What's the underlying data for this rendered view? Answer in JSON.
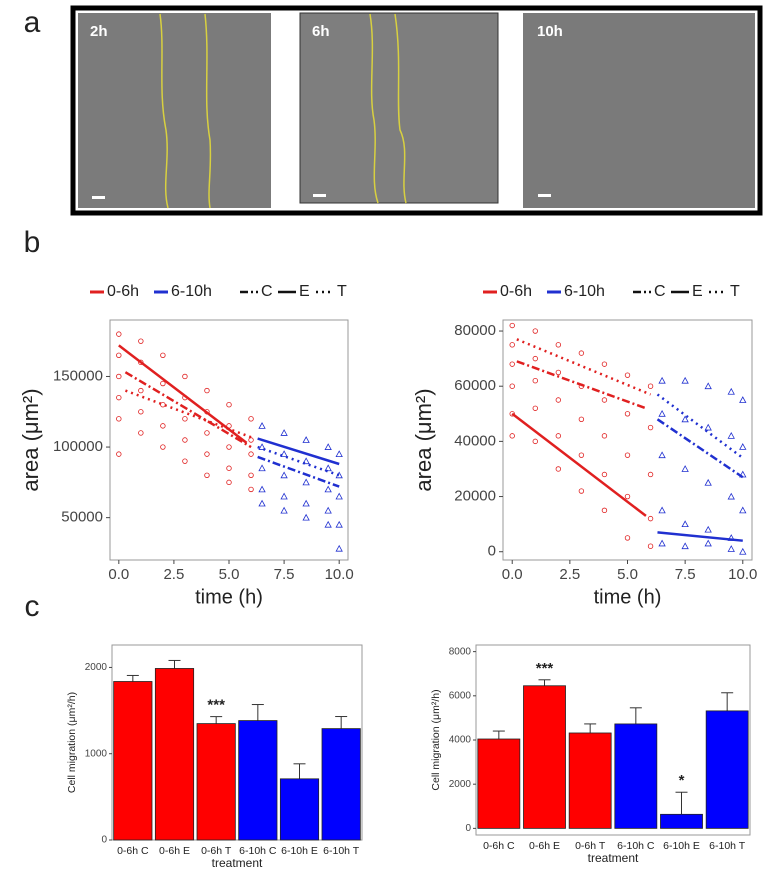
{
  "panels": [
    "a",
    "b",
    "c"
  ],
  "frames": [
    "2h",
    "6h",
    "10h"
  ],
  "chart_data": [
    {
      "type": "scatter",
      "xlabel": "time (h)",
      "ylabel": "area (μm²)",
      "xlim": [
        -0.4,
        10.4
      ],
      "ylim": [
        20000,
        190000
      ],
      "xticks": [
        {
          "value": 0,
          "label": "0.0"
        },
        2.5,
        {
          "value": 5,
          "label": "5.0"
        },
        7.5,
        {
          "value": 10,
          "label": "10.0"
        }
      ],
      "yticks": [
        50000,
        100000,
        150000
      ],
      "series": [
        {
          "name": "0-6h",
          "color": "#e02020",
          "marker": "circle",
          "x": [
            0,
            0,
            0,
            0,
            0,
            0,
            1,
            1,
            1,
            1,
            1,
            2,
            2,
            2,
            2,
            2,
            3,
            3,
            3,
            3,
            3,
            4,
            4,
            4,
            4,
            4,
            5,
            5,
            5,
            5,
            5,
            6,
            6,
            6,
            6,
            6
          ],
          "values": [
            180000,
            165000,
            150000,
            135000,
            120000,
            95000,
            175000,
            160000,
            140000,
            125000,
            110000,
            165000,
            145000,
            130000,
            115000,
            100000,
            150000,
            135000,
            120000,
            105000,
            90000,
            140000,
            125000,
            110000,
            95000,
            80000,
            130000,
            115000,
            100000,
            85000,
            75000,
            120000,
            105000,
            95000,
            80000,
            70000
          ]
        },
        {
          "name": "6-10h",
          "color": "#2030d0",
          "marker": "triangle",
          "x": [
            6.5,
            6.5,
            6.5,
            6.5,
            6.5,
            7.5,
            7.5,
            7.5,
            7.5,
            7.5,
            8.5,
            8.5,
            8.5,
            8.5,
            8.5,
            9.5,
            9.5,
            9.5,
            9.5,
            9.5,
            10,
            10,
            10,
            10,
            10
          ],
          "values": [
            115000,
            100000,
            85000,
            70000,
            60000,
            110000,
            95000,
            80000,
            65000,
            55000,
            105000,
            90000,
            75000,
            60000,
            50000,
            100000,
            85000,
            70000,
            55000,
            45000,
            95000,
            80000,
            65000,
            45000,
            28000
          ]
        }
      ],
      "linetypes": [
        {
          "name": "C",
          "dash": "dashdot"
        },
        {
          "name": "E",
          "dash": "solid"
        },
        {
          "name": "T",
          "dash": "dotted"
        }
      ],
      "fits": [
        {
          "color": "#e02020",
          "dash": "solid",
          "x": [
            0,
            5.8
          ],
          "values": [
            172000,
            103000
          ]
        },
        {
          "color": "#e02020",
          "dash": "dashdot",
          "x": [
            0.3,
            6
          ],
          "values": [
            153000,
            100000
          ]
        },
        {
          "color": "#e02020",
          "dash": "dotted",
          "x": [
            0.3,
            6
          ],
          "values": [
            140000,
            107000
          ]
        },
        {
          "color": "#2030d0",
          "dash": "solid",
          "x": [
            6.3,
            10
          ],
          "values": [
            106000,
            88000
          ]
        },
        {
          "color": "#2030d0",
          "dash": "dashdot",
          "x": [
            6.3,
            10
          ],
          "values": [
            93000,
            72000
          ]
        },
        {
          "color": "#2030d0",
          "dash": "dotted",
          "x": [
            6.3,
            10
          ],
          "values": [
            100000,
            80000
          ]
        }
      ]
    },
    {
      "type": "scatter",
      "xlabel": "time (h)",
      "ylabel": "area (μm²)",
      "xlim": [
        -0.4,
        10.4
      ],
      "ylim": [
        -3000,
        84000
      ],
      "xticks": [
        {
          "value": 0,
          "label": "0.0"
        },
        2.5,
        {
          "value": 5,
          "label": "5.0"
        },
        7.5,
        {
          "value": 10,
          "label": "10.0"
        }
      ],
      "yticks": [
        0,
        20000,
        40000,
        60000,
        80000
      ],
      "series": [
        {
          "name": "0-6h",
          "color": "#e02020",
          "marker": "circle",
          "x": [
            0,
            0,
            0,
            0,
            0,
            0,
            1,
            1,
            1,
            1,
            1,
            2,
            2,
            2,
            2,
            2,
            3,
            3,
            3,
            3,
            3,
            4,
            4,
            4,
            4,
            4,
            5,
            5,
            5,
            5,
            5,
            6,
            6,
            6,
            6,
            6
          ],
          "values": [
            82000,
            75000,
            68000,
            60000,
            50000,
            42000,
            80000,
            70000,
            62000,
            52000,
            40000,
            75000,
            65000,
            55000,
            42000,
            30000,
            72000,
            60000,
            48000,
            35000,
            22000,
            68000,
            55000,
            42000,
            28000,
            15000,
            64000,
            50000,
            35000,
            20000,
            5000,
            60000,
            45000,
            28000,
            12000,
            2000
          ]
        },
        {
          "name": "6-10h",
          "color": "#2030d0",
          "marker": "triangle",
          "x": [
            6.5,
            6.5,
            6.5,
            6.5,
            6.5,
            7.5,
            7.5,
            7.5,
            7.5,
            7.5,
            8.5,
            8.5,
            8.5,
            8.5,
            8.5,
            9.5,
            9.5,
            9.5,
            9.5,
            9.5,
            10,
            10,
            10,
            10,
            10
          ],
          "values": [
            62000,
            50000,
            35000,
            15000,
            3000,
            62000,
            48000,
            30000,
            10000,
            2000,
            60000,
            45000,
            25000,
            8000,
            3000,
            58000,
            42000,
            20000,
            5000,
            1000,
            55000,
            38000,
            28000,
            15000,
            0
          ]
        }
      ],
      "linetypes": [
        {
          "name": "C",
          "dash": "dashdot"
        },
        {
          "name": "E",
          "dash": "solid"
        },
        {
          "name": "T",
          "dash": "dotted"
        }
      ],
      "fits": [
        {
          "color": "#e02020",
          "dash": "solid",
          "x": [
            0,
            5.8
          ],
          "values": [
            50000,
            13000
          ]
        },
        {
          "color": "#e02020",
          "dash": "dashdot",
          "x": [
            0.2,
            5.8
          ],
          "values": [
            69000,
            52000
          ]
        },
        {
          "color": "#e02020",
          "dash": "dotted",
          "x": [
            0.2,
            6
          ],
          "values": [
            77000,
            57000
          ]
        },
        {
          "color": "#2030d0",
          "dash": "solid",
          "x": [
            6.3,
            10
          ],
          "values": [
            7000,
            4000
          ]
        },
        {
          "color": "#2030d0",
          "dash": "dashdot",
          "x": [
            6.3,
            10
          ],
          "values": [
            48000,
            27000
          ]
        },
        {
          "color": "#2030d0",
          "dash": "dotted",
          "x": [
            6.3,
            10
          ],
          "values": [
            57000,
            34000
          ]
        }
      ]
    },
    {
      "type": "bar",
      "xlabel": "treatment",
      "ylabel": "Cell migration (μm²/h)",
      "ylim": [
        0,
        2260
      ],
      "yticks": [
        0,
        1000,
        2000
      ],
      "categories": [
        "0-6h C",
        "0-6h E",
        "0-6h T",
        "6-10h C",
        "6-10h E",
        "6-10h T"
      ],
      "values": [
        1837,
        1988,
        1349,
        1384,
        709,
        1291
      ],
      "errors": [
        70,
        93,
        81,
        186,
        174,
        140
      ],
      "colors": [
        "#ff0000",
        "#ff0000",
        "#ff0000",
        "#0000ff",
        "#0000ff",
        "#0000ff"
      ],
      "annotations": [
        null,
        null,
        "***",
        null,
        null,
        null
      ]
    },
    {
      "type": "bar",
      "xlabel": "treatment",
      "ylabel": "Cell migration (μm²/h)",
      "ylim": [
        -300,
        8300
      ],
      "yticks": [
        0,
        2000,
        4000,
        6000,
        8000
      ],
      "categories": [
        "0-6h C",
        "0-6h E",
        "0-6h T",
        "6-10h C",
        "6-10h E",
        "6-10h T"
      ],
      "values": [
        4045,
        6455,
        4318,
        4727,
        636,
        5318
      ],
      "errors": [
        360,
        270,
        410,
        730,
        1000,
        820
      ],
      "colors": [
        "#ff0000",
        "#ff0000",
        "#ff0000",
        "#0000ff",
        "#0000ff",
        "#0000ff"
      ],
      "annotations": [
        null,
        "***",
        null,
        null,
        "*",
        null
      ]
    }
  ]
}
